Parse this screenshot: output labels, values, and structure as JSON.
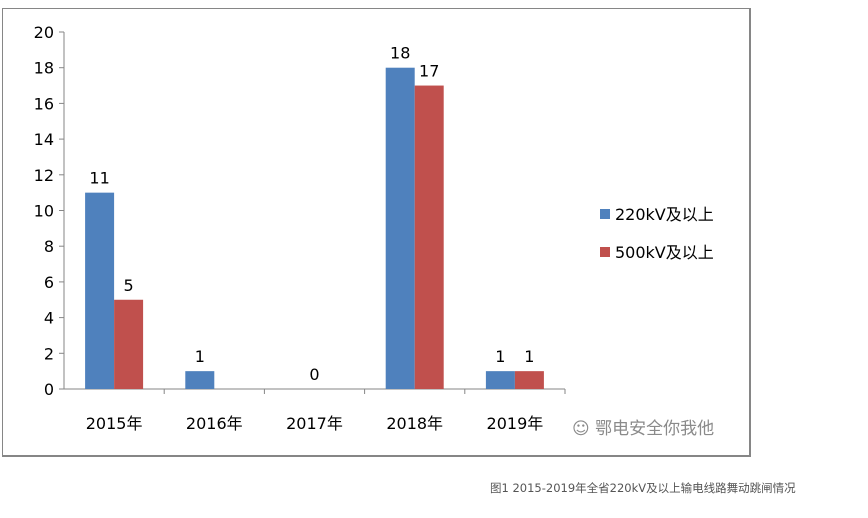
{
  "chart_data": {
    "type": "bar",
    "categories": [
      "2015年",
      "2016年",
      "2017年",
      "2018年",
      "2019年"
    ],
    "series": [
      {
        "name": "220kV及以上",
        "color": "#4f81bd",
        "values": [
          11,
          1,
          0,
          18,
          1
        ]
      },
      {
        "name": "500kV及以上",
        "color": "#c0504d",
        "values": [
          5,
          0,
          0,
          17,
          1
        ]
      }
    ],
    "data_labels": [
      [
        "11",
        "1",
        "0",
        "18",
        "1"
      ],
      [
        "5",
        "",
        "",
        "17",
        "1"
      ]
    ],
    "ylim": [
      0,
      20
    ],
    "yticks": [
      0,
      2,
      4,
      6,
      8,
      10,
      12,
      14,
      16,
      18,
      20
    ],
    "grid": false,
    "legend": "right"
  },
  "watermark": "鄂电安全你我他",
  "caption": "图1  2015-2019年全省220kV及以上输电线路舞动跳闸情况"
}
